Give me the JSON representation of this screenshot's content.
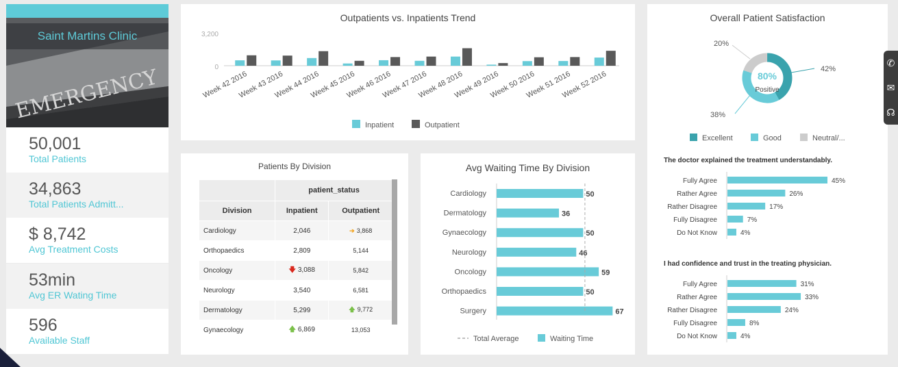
{
  "clinic": {
    "name": "Saint Martins Clinic",
    "sign_text": "EMERGENCY"
  },
  "kpis": [
    {
      "value": "50,001",
      "label": "Total Patients"
    },
    {
      "value": "34,863",
      "label": "Total Patients Admitt..."
    },
    {
      "value": "$ 8,742",
      "label": "Avg Treatment Costs"
    },
    {
      "value": "53min",
      "label": "Avg ER Wating Time"
    },
    {
      "value": "596",
      "label": "Available Staff"
    }
  ],
  "trend": {
    "title": "Outpatients vs. Inpatients Trend",
    "chart_data": {
      "type": "bar",
      "title": "Outpatients vs. Inpatients Trend",
      "categories": [
        "Week 42 2016",
        "Week 43 2016",
        "Week 44 2016",
        "Week 45 2016",
        "Week 46 2016",
        "Week 47 2016",
        "Week 48 2016",
        "Week 49 2016",
        "Week 50 2016",
        "Week 51 2016",
        "Week 52 2016"
      ],
      "series": [
        {
          "name": "Inpatient",
          "values": [
            550,
            540,
            780,
            230,
            560,
            500,
            930,
            110,
            470,
            480,
            830
          ],
          "color": "#68cbd8"
        },
        {
          "name": "Outpatient",
          "values": [
            1060,
            1030,
            1480,
            500,
            880,
            930,
            1780,
            270,
            860,
            880,
            1520
          ],
          "color": "#595959"
        }
      ],
      "yticks": [
        "3,200",
        "0"
      ],
      "ylim": [
        0,
        3200
      ],
      "legend": "bottom"
    }
  },
  "division": {
    "title": "Patients By Division",
    "group_header": "patient_status",
    "headers": [
      "Division",
      "Inpatient",
      "Outpatient"
    ],
    "rows": [
      {
        "division": "Cardiology",
        "inpatient": "2,046",
        "in_arrow": "",
        "outpatient": "3,868",
        "out_arrow": "➔"
      },
      {
        "division": "Orthopaedics",
        "inpatient": "2,809",
        "in_arrow": "",
        "outpatient": "5,144",
        "out_arrow": ""
      },
      {
        "division": "Oncology",
        "inpatient": "3,088",
        "in_arrow": "🡇",
        "outpatient": "5,842",
        "out_arrow": ""
      },
      {
        "division": "Neurology",
        "inpatient": "3,540",
        "in_arrow": "",
        "outpatient": "6,581",
        "out_arrow": ""
      },
      {
        "division": "Dermatology",
        "inpatient": "5,299",
        "in_arrow": "",
        "outpatient": "9,772",
        "out_arrow": "🡅"
      },
      {
        "division": "Gynaecology",
        "inpatient": "6,869",
        "in_arrow": "🡅",
        "outpatient": "13,053",
        "out_arrow": ""
      }
    ]
  },
  "waiting": {
    "title": "Avg Waiting Time By Division",
    "chart_data": {
      "type": "bar",
      "orientation": "horizontal",
      "title": "Avg Waiting Time By Division",
      "categories": [
        "Cardiology",
        "Dermatology",
        "Gynaecology",
        "Neurology",
        "Oncology",
        "Orthopaedics",
        "Surgery"
      ],
      "values": [
        50,
        36,
        50,
        46,
        59,
        50,
        67
      ],
      "average": 51,
      "xlim": [
        0,
        72
      ],
      "legend": [
        "Total Average",
        "Waiting Time"
      ],
      "colors": {
        "bar": "#68cbd8",
        "average": "#aaaaaa"
      }
    }
  },
  "satisfaction": {
    "title": "Overall Patient Satisfaction",
    "donut": {
      "type": "pie",
      "center_value": "80%",
      "center_label": "Positive",
      "slices": [
        {
          "name": "Excellent",
          "value": 42,
          "label": "42%",
          "color": "#3aa3ad"
        },
        {
          "name": "Good",
          "value": 38,
          "label": "38%",
          "color": "#68cbd8"
        },
        {
          "name": "Neutral/...",
          "value": 20,
          "label": "20%",
          "color": "#cccccc"
        }
      ]
    },
    "q1": {
      "title": "The doctor explained the treatment understandably.",
      "chart_data": {
        "type": "bar",
        "orientation": "horizontal",
        "categories": [
          "Fully Agree",
          "Rather Agree",
          "Rather Disagree",
          "Fully Disagree",
          "Do Not Know"
        ],
        "values": [
          45,
          26,
          17,
          7,
          4
        ],
        "labels": [
          "45%",
          "26%",
          "17%",
          "7%",
          "4%"
        ]
      }
    },
    "q2": {
      "title": "I had confidence and trust in the treating physician.",
      "chart_data": {
        "type": "bar",
        "orientation": "horizontal",
        "categories": [
          "Fully Agree",
          "Rather Agree",
          "Rather Disagree",
          "Fully Disagree",
          "Do Not Know"
        ],
        "values": [
          31,
          33,
          24,
          8,
          4
        ],
        "labels": [
          "31%",
          "33%",
          "24%",
          "8%",
          "4%"
        ]
      }
    }
  },
  "contact": {
    "icons": [
      "phone-icon",
      "mail-icon",
      "headset-icon"
    ],
    "glyphs": [
      "✆",
      "✉",
      "☊"
    ]
  }
}
